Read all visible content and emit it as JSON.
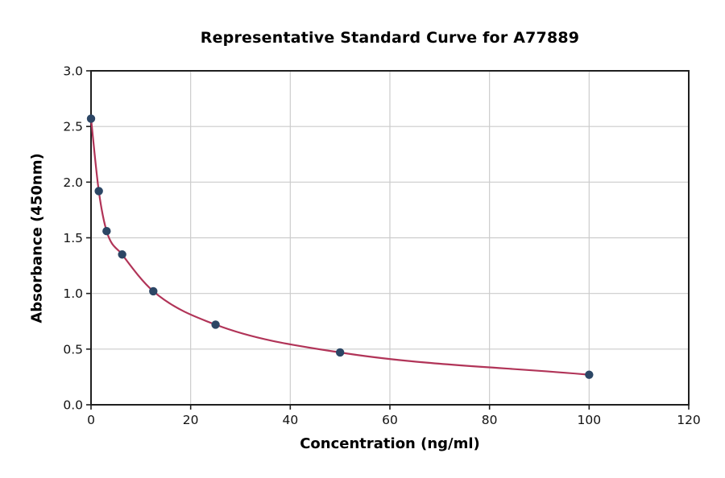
{
  "chart_data": {
    "type": "scatter",
    "title": "Representative Standard Curve for A77889",
    "xlabel": "Concentration (ng/ml)",
    "ylabel": "Absorbance (450nm)",
    "x": [
      0,
      1.56,
      3.13,
      6.25,
      12.5,
      25,
      50,
      100
    ],
    "y": [
      2.57,
      1.92,
      1.56,
      1.35,
      1.02,
      0.72,
      0.47,
      0.27
    ],
    "xlim": [
      0,
      120
    ],
    "ylim": [
      0.0,
      3.0
    ],
    "xticks": [
      0,
      20,
      40,
      60,
      80,
      100,
      120
    ],
    "xtick_labels": [
      "0",
      "20",
      "40",
      "60",
      "80",
      "100",
      "120"
    ],
    "yticks": [
      0.0,
      0.5,
      1.0,
      1.5,
      2.0,
      2.5,
      3.0
    ],
    "ytick_labels": [
      "0.0",
      "0.5",
      "1.0",
      "1.5",
      "2.0",
      "2.5",
      "3.0"
    ],
    "grid": true,
    "legend": "none",
    "colors": {
      "fit_line": "#b13458",
      "marker": "#2c4665",
      "spine": "#1f1f1f",
      "gridline": "#cccccc",
      "background": "#ffffff"
    }
  }
}
